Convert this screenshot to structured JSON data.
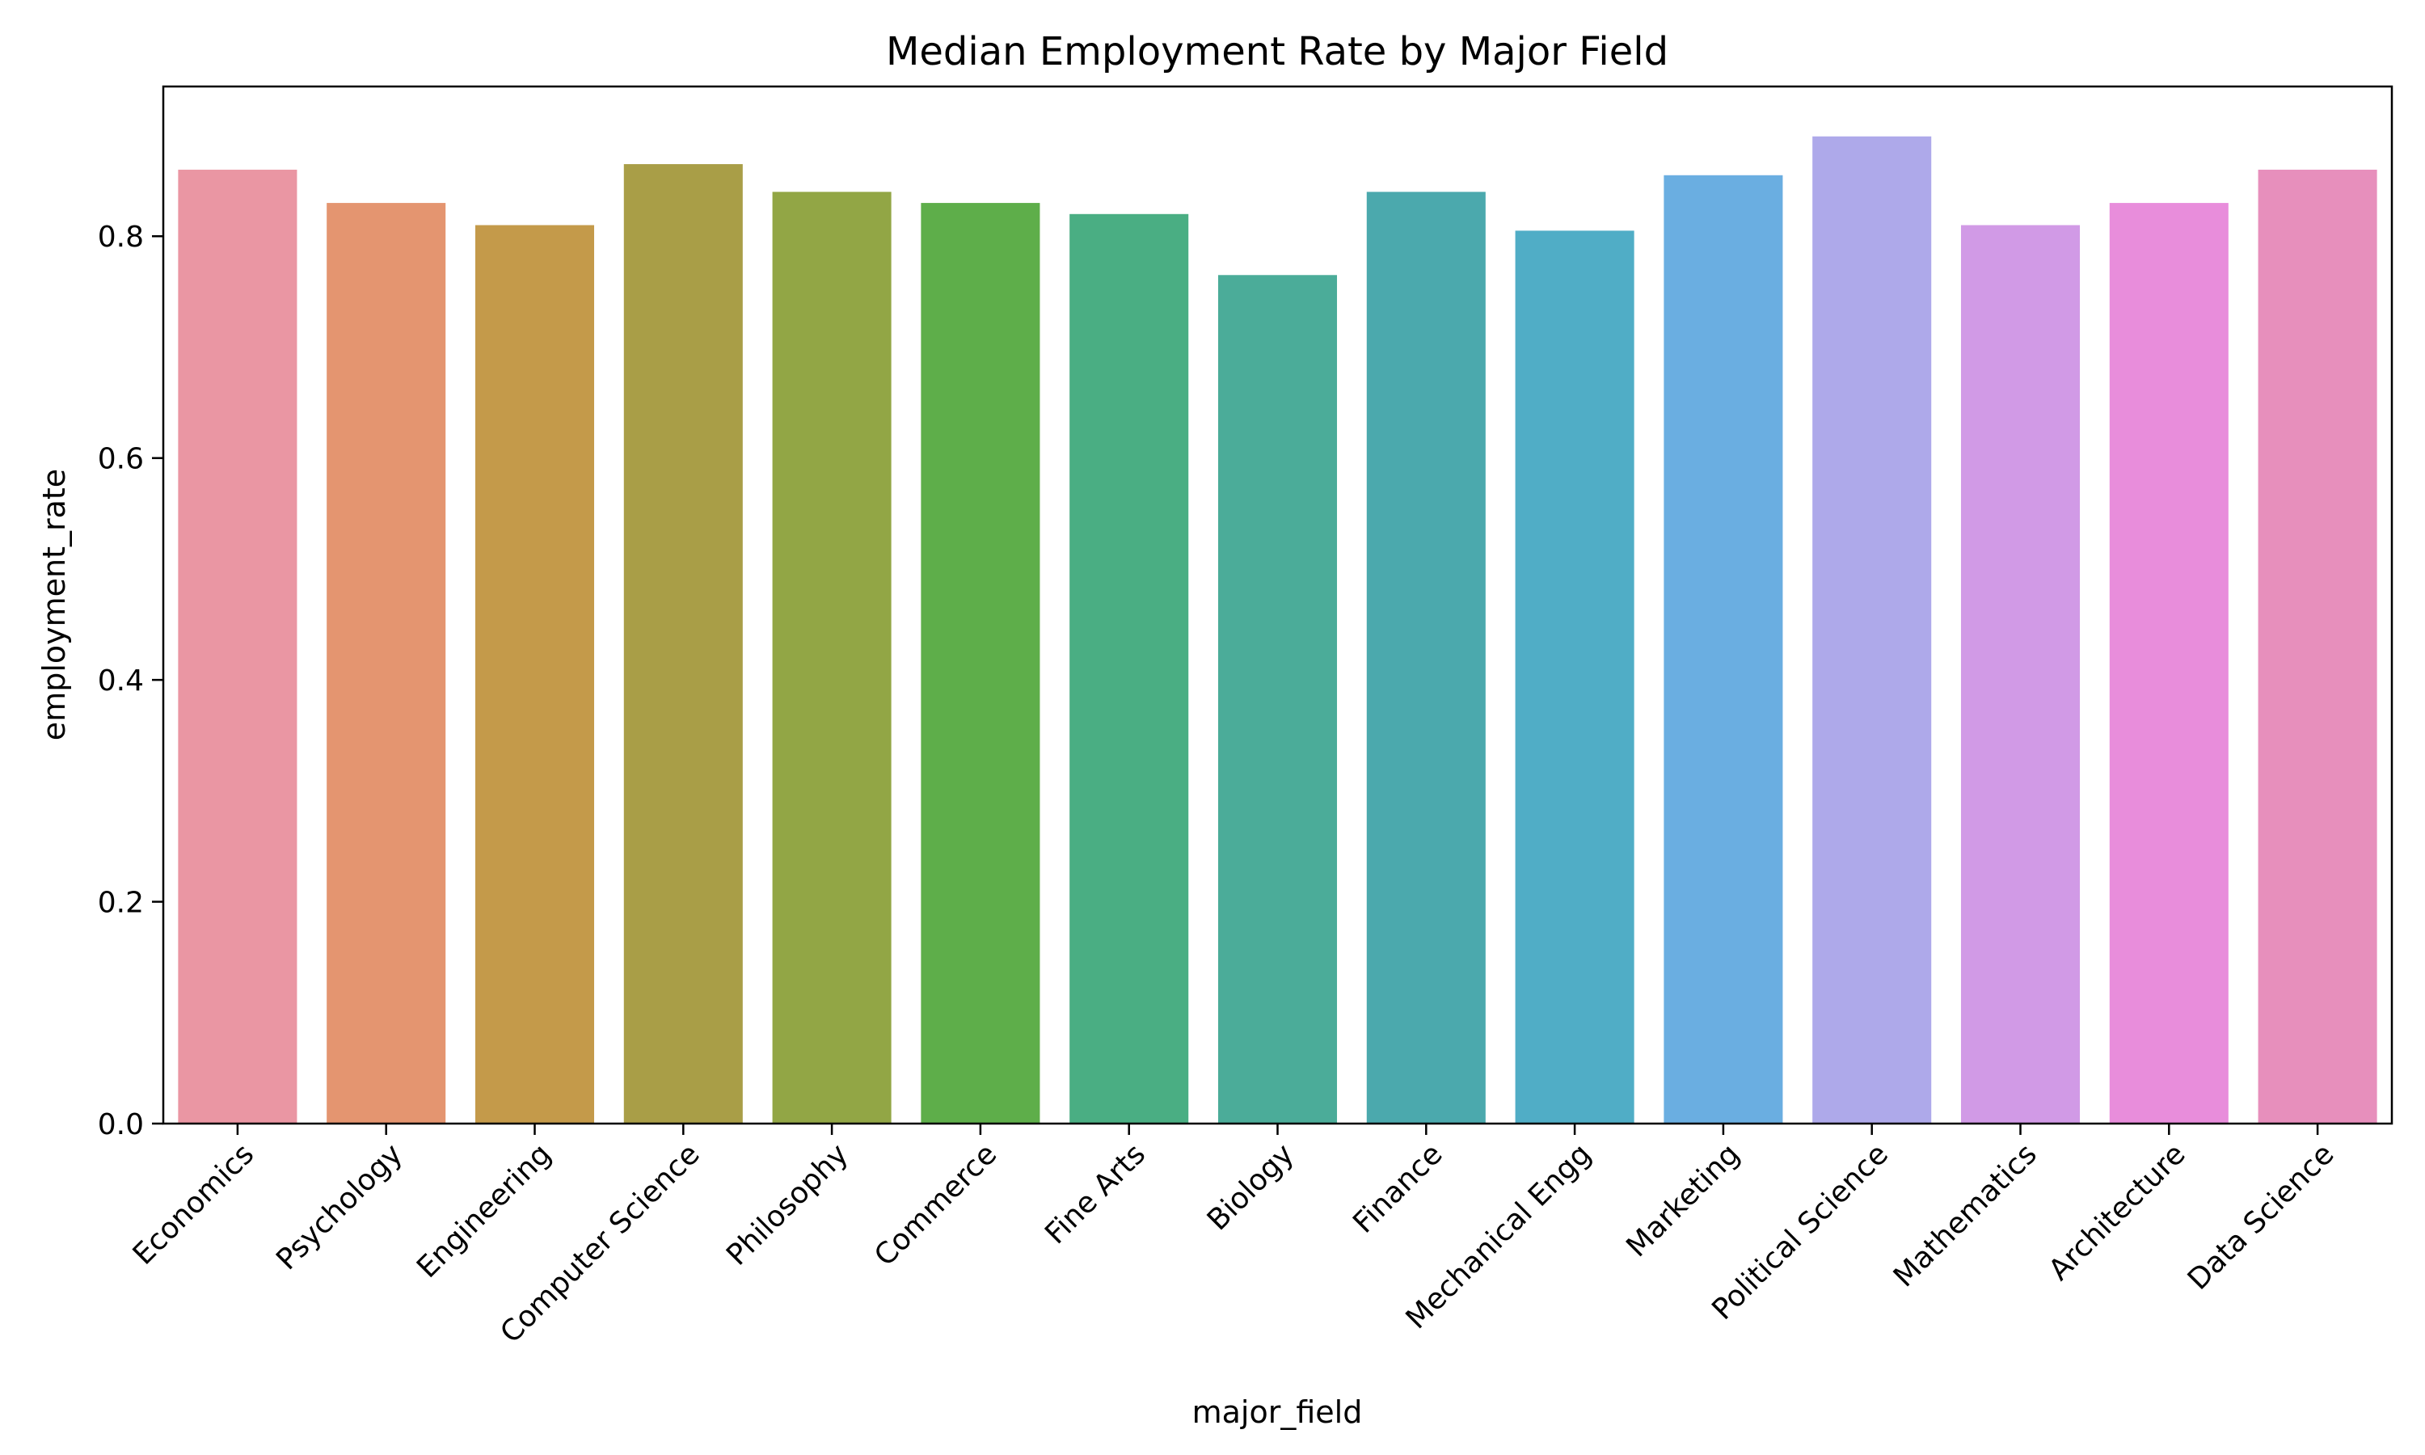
{
  "chart_data": {
    "type": "bar",
    "title": "Median Employment Rate by Major Field",
    "xlabel": "major_field",
    "ylabel": "employment_rate",
    "ylim": [
      0,
      0.935
    ],
    "yticks": [
      0.0,
      0.2,
      0.4,
      0.6,
      0.8
    ],
    "ytick_labels": [
      "0.0",
      "0.2",
      "0.4",
      "0.6",
      "0.8"
    ],
    "grid": false,
    "categories": [
      "Economics",
      "Psychology",
      "Engineering",
      "Computer Science",
      "Philosophy",
      "Commerce",
      "Fine Arts",
      "Biology",
      "Finance",
      "Mechanical Engg",
      "Marketing",
      "Political Science",
      "Mathematics",
      "Architecture",
      "Data Science"
    ],
    "values": [
      0.86,
      0.83,
      0.81,
      0.865,
      0.84,
      0.83,
      0.82,
      0.765,
      0.84,
      0.805,
      0.855,
      0.89,
      0.81,
      0.83,
      0.86
    ],
    "colors": [
      "#EA96A3",
      "#E49570",
      "#C49A4A",
      "#A99E47",
      "#92A645",
      "#5EAE4A",
      "#4AAE83",
      "#4BAC99",
      "#4BA9AD",
      "#50ADC6",
      "#6AAEE1",
      "#AEA9EA",
      "#D19AE6",
      "#E88DDB",
      "#E78FBC"
    ]
  }
}
